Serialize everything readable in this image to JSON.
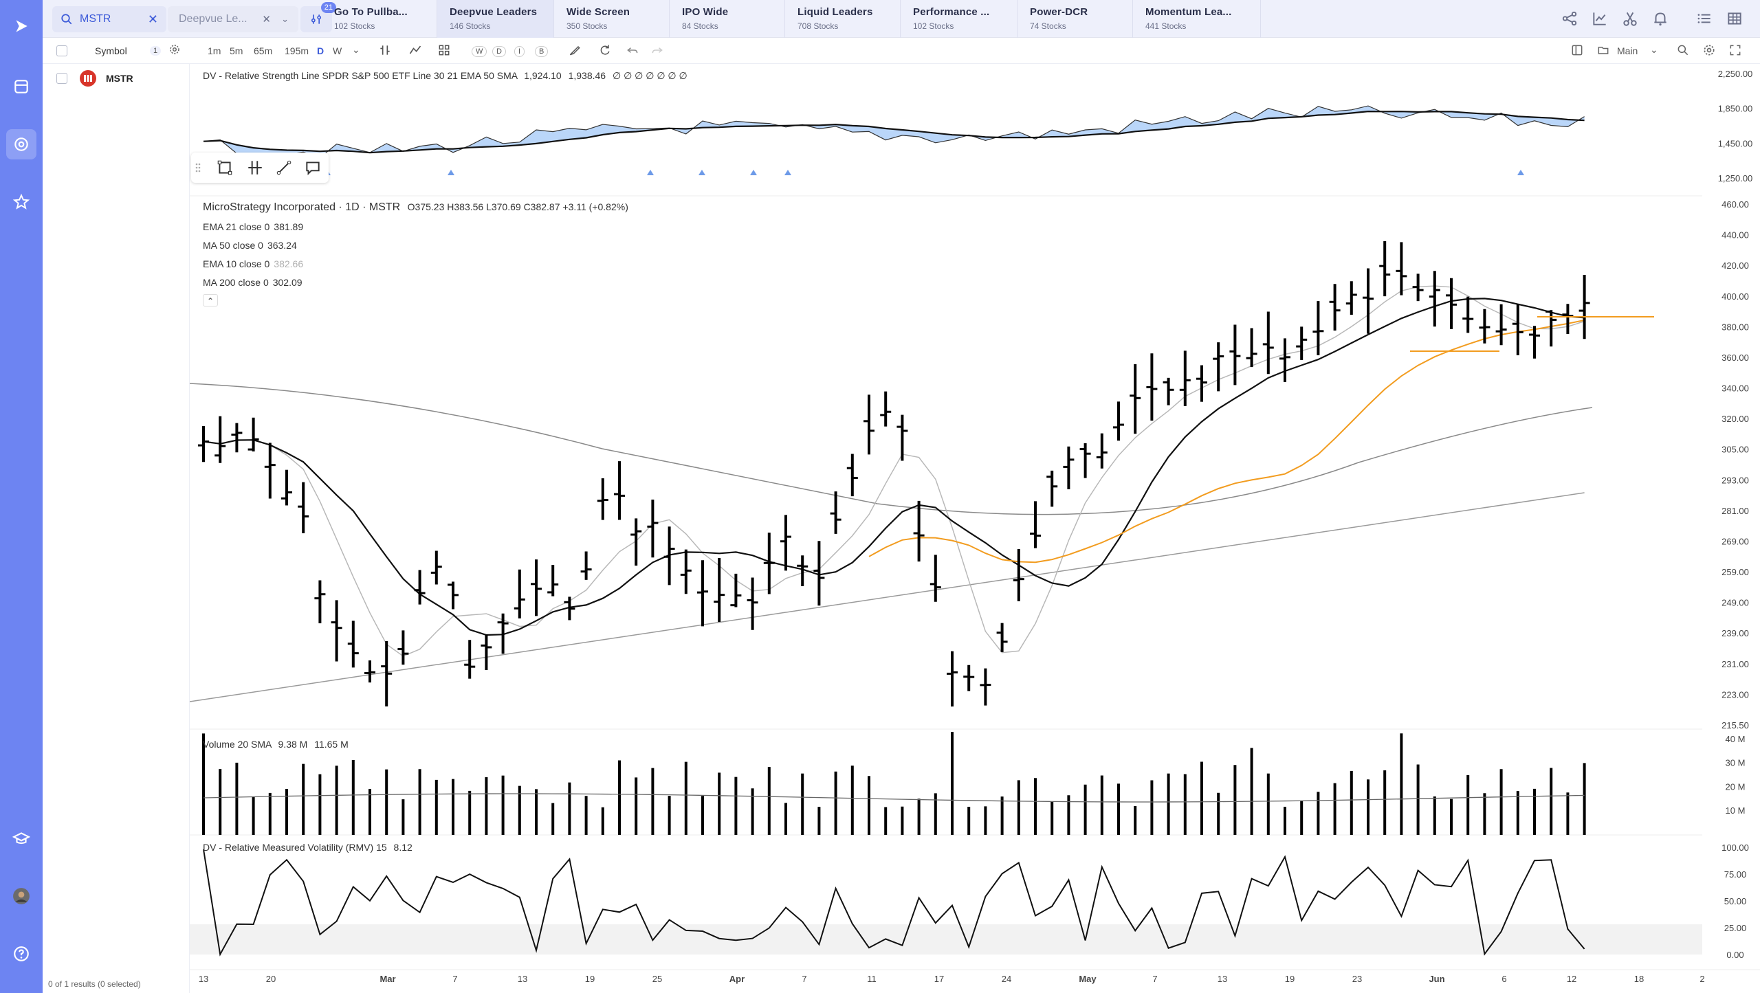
{
  "topbar": {
    "search_value": "MSTR",
    "watchlist_select": "Deepvue Le...",
    "filter_count": "21",
    "tabs": [
      {
        "title": "Go To Pullba...",
        "sub": "102 Stocks"
      },
      {
        "title": "Deepvue Leaders",
        "sub": "146 Stocks"
      },
      {
        "title": "Wide Screen",
        "sub": "350 Stocks"
      },
      {
        "title": "IPO Wide",
        "sub": "84 Stocks"
      },
      {
        "title": "Liquid Leaders",
        "sub": "708 Stocks"
      },
      {
        "title": "Performance ...",
        "sub": "102 Stocks"
      },
      {
        "title": "Power-DCR",
        "sub": "74 Stocks"
      },
      {
        "title": "Momentum Lea...",
        "sub": "441 Stocks"
      }
    ],
    "icons": [
      "share-icon",
      "chart-icon",
      "scissors-icon",
      "bell-icon",
      "list-icon",
      "grid-icon"
    ]
  },
  "toolbar": {
    "symbol_label": "Symbol",
    "symbol_count": "1",
    "timeframes": [
      "1m",
      "5m",
      "65m",
      "195m",
      "D",
      "W"
    ],
    "active_timeframe": "D",
    "letters": [
      "W",
      "D",
      "I",
      "B"
    ],
    "layout_label": "Main"
  },
  "symbols": [
    {
      "ticker": "MSTR"
    }
  ],
  "status": "0 of 1 results (0 selected)",
  "colors": {
    "accent": "#6d84f2",
    "area_up": "#9cc4f7",
    "ema10": "#b8b8b8",
    "ma50": "#f29c1f",
    "ma200": "#9a9a9a"
  },
  "rs_pane": {
    "legend": "DV - Relative Strength Line SPDR S&P 500 ETF Line 30 21 EMA 50 SMA",
    "v1": "1,924.10",
    "v2": "1,938.46",
    "tail": "∅ ∅ ∅ ∅ ∅ ∅ ∅",
    "axis": [
      "2,250.00",
      "1,850.00",
      "1,450.00",
      "1,250.00"
    ]
  },
  "price_pane": {
    "title": "MicroStrategy Incorporated · 1D · MSTR",
    "ohlc": "O375.23  H383.56  L370.69  C382.87  +3.11 (+0.82%)",
    "indicators": [
      {
        "label": "EMA 21 close 0",
        "value": "381.89",
        "dim": false
      },
      {
        "label": "MA 50 close 0",
        "value": "363.24",
        "dim": false
      },
      {
        "label": "EMA 10 close 0",
        "value": "382.66",
        "dim": true
      },
      {
        "label": "MA 200 close 0",
        "value": "302.09",
        "dim": false
      }
    ],
    "axis": [
      "460.00",
      "440.00",
      "420.00",
      "400.00",
      "380.00",
      "360.00",
      "340.00",
      "320.00",
      "305.00",
      "293.00",
      "281.00",
      "269.00",
      "259.00",
      "249.00",
      "239.00",
      "231.00",
      "223.00",
      "215.50"
    ]
  },
  "volume_pane": {
    "legend": "Volume 20 SMA",
    "v1": "9.38 M",
    "v2": "11.65 M",
    "axis": [
      "40 M",
      "30 M",
      "20 M",
      "10 M"
    ]
  },
  "rmv_pane": {
    "legend": "DV - Relative Measured Volatility (RMV) 15",
    "value": "8.12",
    "axis": [
      "100.00",
      "75.00",
      "50.00",
      "25.00",
      "0.00"
    ]
  },
  "xaxis": [
    "13",
    "20",
    "Mar",
    "7",
    "13",
    "19",
    "25",
    "Apr",
    "7",
    "11",
    "17",
    "24",
    "May",
    "7",
    "13",
    "19",
    "23",
    "Jun",
    "6",
    "12",
    "18",
    "2"
  ],
  "xaxis_bold": [
    "Mar",
    "Apr",
    "May",
    "Jun"
  ]
}
